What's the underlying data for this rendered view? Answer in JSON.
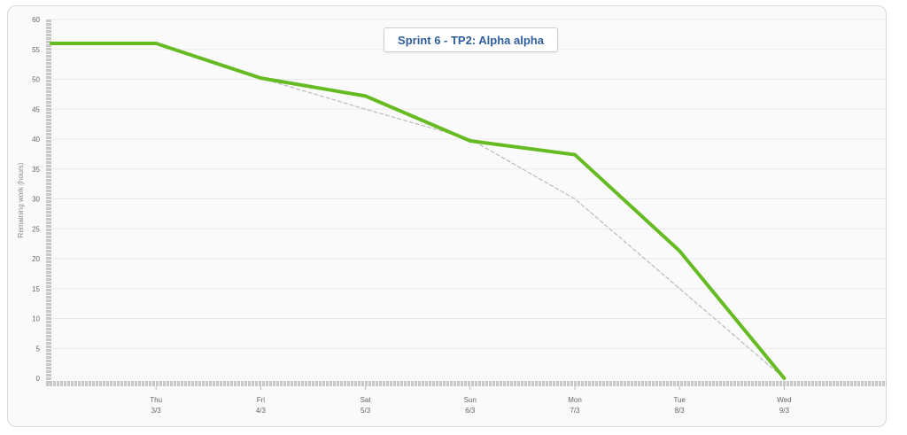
{
  "chart_data": {
    "type": "line",
    "title": "Sprint 6 - TP2: Alpha alpha",
    "xlabel": "",
    "ylabel": "Remaining work (hours)",
    "ylim": [
      0,
      60
    ],
    "yticks": [
      "0",
      "5",
      "10",
      "15",
      "20",
      "25",
      "30",
      "35",
      "40",
      "45",
      "50",
      "55",
      "60"
    ],
    "categories": [
      {
        "day": "",
        "date": ""
      },
      {
        "day": "Thu",
        "date": "3/3"
      },
      {
        "day": "Fri",
        "date": "4/3"
      },
      {
        "day": "Sat",
        "date": "5/3"
      },
      {
        "day": "Sun",
        "date": "6/3"
      },
      {
        "day": "Mon",
        "date": "7/3"
      },
      {
        "day": "Tue",
        "date": "8/3"
      },
      {
        "day": "Wed",
        "date": "9/3"
      }
    ],
    "series": [
      {
        "style": "solid",
        "color": "#66bb22",
        "values": [
          56,
          56,
          50.2,
          47.2,
          39.7,
          37.4,
          21.3,
          0
        ]
      },
      {
        "style": "dashed",
        "color": "#bbbbbb",
        "values": [
          null,
          null,
          50.2,
          45,
          40,
          30,
          15,
          0
        ]
      }
    ],
    "grid": true,
    "legend": "none"
  }
}
